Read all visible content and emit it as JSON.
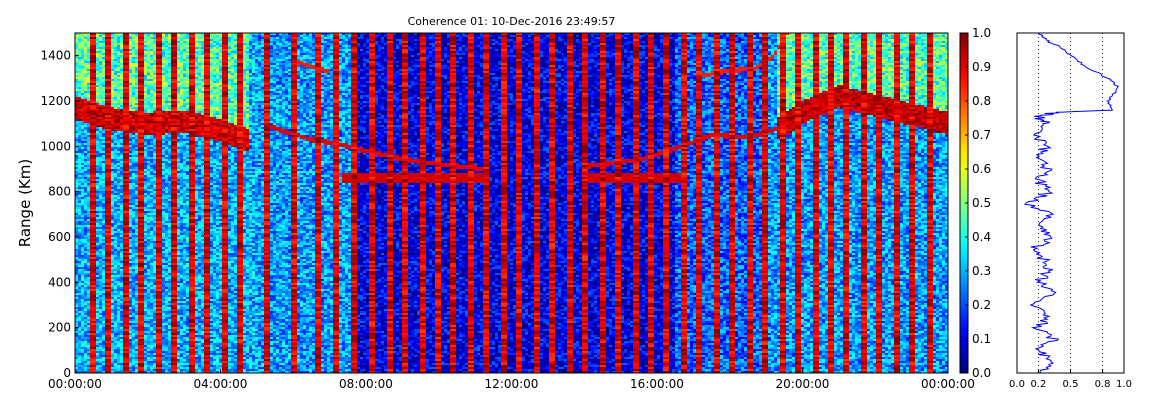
{
  "chart_data": [
    {
      "type": "heatmap",
      "title": "Coherence 01: 10-Dec-2016 23:49:57",
      "ylabel": "Range (Km)",
      "xlabel": "",
      "x_tick_labels": [
        "00:00:00",
        "04:00:00",
        "08:00:00",
        "12:00:00",
        "16:00:00",
        "20:00:00",
        "00:00:00"
      ],
      "y_ticks": [
        0,
        200,
        400,
        600,
        800,
        1000,
        1200,
        1400
      ],
      "xlim_hours": [
        0,
        24
      ],
      "ylim": [
        0,
        1500
      ],
      "colormap": "jet",
      "colorbar": {
        "ticks": [
          0.0,
          0.1,
          0.2,
          0.3,
          0.4,
          0.5,
          0.6,
          0.7,
          0.8,
          0.9,
          1.0
        ],
        "range": [
          0,
          1
        ]
      },
      "vertical_high_coherence_lines_hours": [
        0.4,
        0.85,
        1.3,
        1.75,
        2.2,
        2.65,
        3.1,
        3.55,
        4.0,
        4.45,
        5.2,
        5.9,
        6.6,
        7.1,
        7.6,
        8.1,
        8.55,
        9.0,
        9.45,
        9.9,
        10.35,
        10.8,
        11.25,
        11.7,
        12.15,
        12.6,
        13.05,
        13.5,
        13.95,
        14.4,
        14.85,
        15.3,
        15.75,
        16.2,
        16.65,
        17.1,
        17.55,
        18.0,
        18.45,
        18.9,
        19.35,
        19.8,
        20.25,
        20.7,
        21.15,
        21.6,
        22.05,
        22.5,
        22.95,
        23.4
      ],
      "layer_top_km": [
        [
          0,
          1180
        ],
        [
          1,
          1130
        ],
        [
          2,
          1110
        ],
        [
          3,
          1120
        ],
        [
          4,
          1080
        ],
        [
          4.7,
          1040
        ]
      ],
      "layer_top_late_km": [
        [
          19.4,
          1080
        ],
        [
          20,
          1150
        ],
        [
          21,
          1220
        ],
        [
          22,
          1180
        ],
        [
          23,
          1140
        ],
        [
          24,
          1100
        ]
      ],
      "trace_descending_km": [
        [
          5.3,
          1090
        ],
        [
          6.5,
          1030
        ],
        [
          7.5,
          1000
        ],
        [
          8.5,
          960
        ],
        [
          9.5,
          930
        ],
        [
          11.2,
          900
        ]
      ],
      "trace_ascending_km": [
        [
          14,
          910
        ],
        [
          15.5,
          940
        ],
        [
          16.5,
          990
        ],
        [
          17.5,
          1050
        ],
        [
          18.5,
          1040
        ],
        [
          19.4,
          1080
        ]
      ],
      "trace_upper_km": [
        [
          17.2,
          1310
        ],
        [
          18,
          1335
        ],
        [
          18.7,
          1340
        ],
        [
          19.2,
          1400
        ],
        [
          19.6,
          1500
        ]
      ],
      "trace_left_upper_km": [
        [
          5.9,
          1380
        ],
        [
          6.5,
          1350
        ],
        [
          7.0,
          1330
        ]
      ],
      "band_850_segments_hours": [
        [
          7.3,
          11.2
        ],
        [
          14,
          16.7
        ]
      ]
    },
    {
      "type": "line",
      "title": "",
      "xlabel": "",
      "ylabel": "",
      "x_tick_labels": [
        "0.0",
        "0.2",
        "0.5",
        "0.8",
        "1.0"
      ],
      "x_ticks": [
        0.0,
        0.2,
        0.5,
        0.8,
        1.0
      ],
      "xlim": [
        0,
        1
      ],
      "ylim": [
        0,
        1500
      ],
      "grid": "vertical dotted at 0.2, 0.5, 0.8",
      "series": [
        {
          "color": "#0000ff",
          "points": [
            [
              0.25,
              0
            ],
            [
              0.3,
              50
            ],
            [
              0.2,
              100
            ],
            [
              0.35,
              150
            ],
            [
              0.2,
              200
            ],
            [
              0.3,
              250
            ],
            [
              0.15,
              300
            ],
            [
              0.35,
              350
            ],
            [
              0.2,
              400
            ],
            [
              0.3,
              450
            ],
            [
              0.25,
              500
            ],
            [
              0.15,
              550
            ],
            [
              0.35,
              600
            ],
            [
              0.2,
              650
            ],
            [
              0.3,
              700
            ],
            [
              0.1,
              750
            ],
            [
              0.3,
              800
            ],
            [
              0.2,
              850
            ],
            [
              0.3,
              900
            ],
            [
              0.15,
              950
            ],
            [
              0.3,
              1000
            ],
            [
              0.15,
              1050
            ],
            [
              0.3,
              1100
            ],
            [
              0.2,
              1130
            ],
            [
              0.35,
              1150
            ],
            [
              0.9,
              1160
            ],
            [
              0.85,
              1200
            ],
            [
              0.95,
              1260
            ],
            [
              0.85,
              1300
            ],
            [
              0.65,
              1350
            ],
            [
              0.5,
              1400
            ],
            [
              0.4,
              1440
            ],
            [
              0.3,
              1460
            ],
            [
              0.2,
              1500
            ]
          ]
        }
      ]
    }
  ]
}
